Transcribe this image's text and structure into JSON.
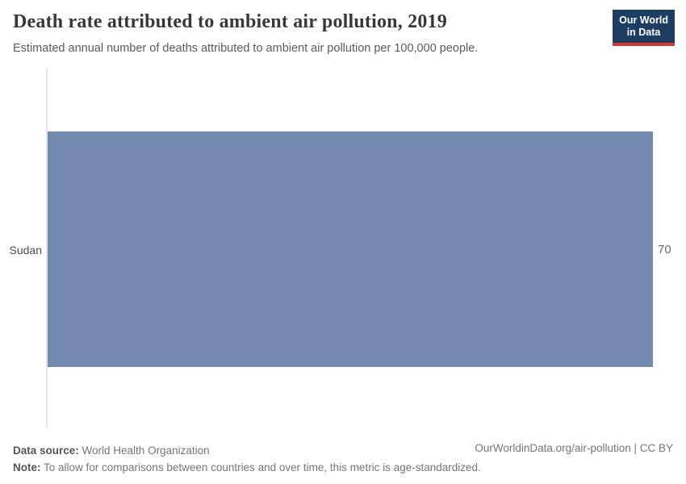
{
  "header": {
    "title": "Death rate attributed to ambient air pollution, 2019",
    "subtitle": "Estimated annual number of deaths attributed to ambient air pollution per 100,000 people.",
    "logo": {
      "line1": "Our World",
      "line2": "in Data"
    }
  },
  "chart_data": {
    "type": "bar",
    "orientation": "horizontal",
    "title": "Death rate attributed to ambient air pollution, 2019",
    "categories": [
      "Sudan"
    ],
    "values": [
      70
    ],
    "value_labels": [
      "70"
    ],
    "xlabel": "",
    "ylabel": "",
    "xlim": [
      0,
      70
    ],
    "grid": false,
    "legend": "none",
    "bar_color": "#738aae"
  },
  "footer": {
    "data_source_label": "Data source:",
    "data_source_value": " World Health Organization",
    "note_label": "Note:",
    "note_value": " To allow for comparisons between countries and over time, this metric is age-standardized.",
    "attribution": "OurWorldinData.org/air-pollution | CC BY"
  },
  "colors": {
    "bar": "#738aae",
    "axis_line": "#e4e4e4",
    "logo_background": "#1d3d63",
    "logo_stripe": "#d7382e"
  }
}
